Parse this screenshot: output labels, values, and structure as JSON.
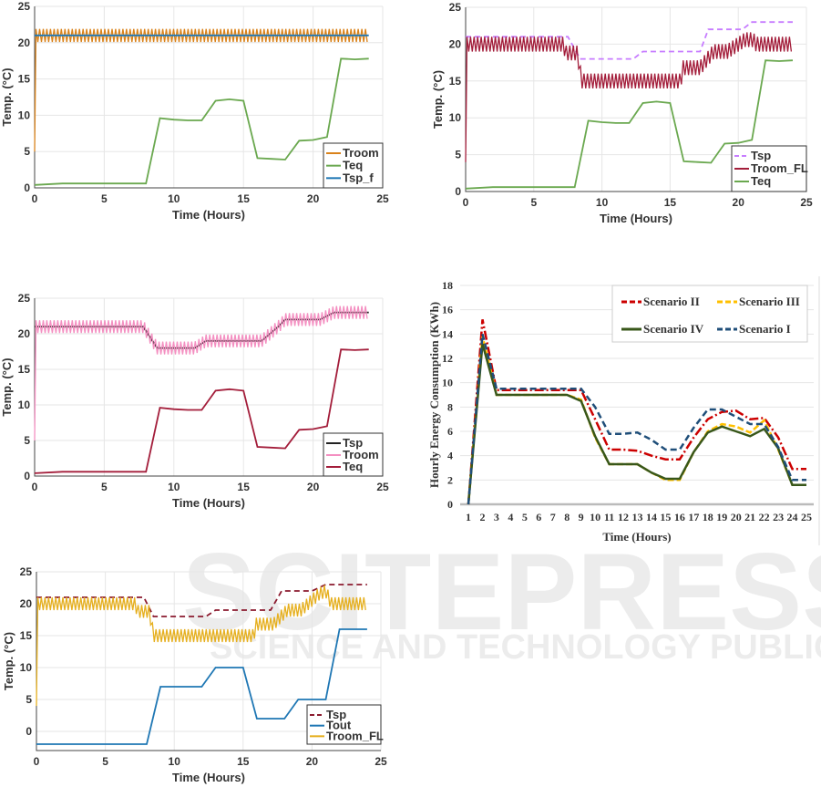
{
  "watermark": {
    "title": "SCITEPRESS",
    "subtitle": "SCIENCE AND TECHNOLOGY PUBLICATIONS"
  },
  "chart_data": [
    {
      "id": "c1",
      "type": "line",
      "title": "",
      "xlabel": "Time (Hours)",
      "ylabel": "Temp. (°C)",
      "xlim": [
        0,
        25
      ],
      "ylim": [
        0,
        25
      ],
      "xticks": [
        0,
        5,
        10,
        15,
        20,
        25
      ],
      "yticks": [
        0,
        5,
        10,
        15,
        20,
        25
      ],
      "grid": true,
      "legend": "bottom-right",
      "series": [
        {
          "name": "Troom",
          "color": "#d9821a",
          "dash": "",
          "points": [
            [
              0,
              5
            ],
            [
              0.1,
              21
            ],
            [
              24,
              21
            ]
          ],
          "ripple": [
            [
              0.1,
              24,
              0.9
            ]
          ]
        },
        {
          "name": "Teq",
          "color": "#6aa84f",
          "dash": "",
          "points": [
            [
              0,
              0.4
            ],
            [
              2,
              0.6
            ],
            [
              8,
              0.6
            ],
            [
              9,
              9.6
            ],
            [
              10,
              9.4
            ],
            [
              11,
              9.3
            ],
            [
              12,
              9.3
            ],
            [
              13,
              12
            ],
            [
              14,
              12.2
            ],
            [
              15,
              12
            ],
            [
              16,
              4.1
            ],
            [
              17,
              4.0
            ],
            [
              18,
              3.9
            ],
            [
              19,
              6.5
            ],
            [
              20,
              6.6
            ],
            [
              21,
              7
            ],
            [
              22,
              17.8
            ],
            [
              23,
              17.7
            ],
            [
              24,
              17.8
            ]
          ]
        },
        {
          "name": "Tsp_f",
          "color": "#1f77b4",
          "dash": "",
          "points": [
            [
              0,
              21
            ],
            [
              24,
              21
            ]
          ]
        }
      ]
    },
    {
      "id": "c2",
      "type": "line",
      "title": "",
      "xlabel": "Time (Hours)",
      "ylabel": "Temp. (°C)",
      "xlim": [
        0,
        25
      ],
      "ylim": [
        0,
        25
      ],
      "xticks": [
        0,
        5,
        10,
        15,
        20,
        25
      ],
      "yticks": [
        0,
        5,
        10,
        15,
        20,
        25
      ],
      "grid": true,
      "legend": "bottom-right",
      "series": [
        {
          "name": "Tsp",
          "color": "#c77dff",
          "dash": "6,4",
          "points": [
            [
              0,
              21
            ],
            [
              7.5,
              21
            ],
            [
              8.4,
              18
            ],
            [
              12.3,
              18
            ],
            [
              13,
              19
            ],
            [
              17.2,
              19
            ],
            [
              17.8,
              22
            ],
            [
              20.3,
              22
            ],
            [
              21,
              23
            ],
            [
              24,
              23
            ]
          ]
        },
        {
          "name": "Troom_FL",
          "color": "#a31d3a",
          "dash": "",
          "points": [
            [
              0,
              4
            ],
            [
              0.1,
              20
            ],
            [
              7.2,
              20
            ],
            [
              7.3,
              18.8
            ],
            [
              8.2,
              18.8
            ],
            [
              8.5,
              15
            ],
            [
              15.8,
              15
            ],
            [
              15.9,
              16.8
            ],
            [
              17.2,
              16.8
            ],
            [
              18.2,
              19
            ],
            [
              19.2,
              19
            ],
            [
              20.5,
              20.6
            ],
            [
              21.1,
              20.6
            ],
            [
              21.3,
              20
            ],
            [
              24,
              20
            ]
          ],
          "ripple": [
            [
              0.1,
              24,
              1
            ]
          ]
        },
        {
          "name": "Teq",
          "color": "#6aa84f",
          "dash": "",
          "points": [
            [
              0,
              0.4
            ],
            [
              2,
              0.6
            ],
            [
              8,
              0.6
            ],
            [
              9,
              9.6
            ],
            [
              10,
              9.4
            ],
            [
              11,
              9.3
            ],
            [
              12,
              9.3
            ],
            [
              13,
              12
            ],
            [
              14,
              12.2
            ],
            [
              15,
              12
            ],
            [
              16,
              4.1
            ],
            [
              17,
              4.0
            ],
            [
              18,
              3.9
            ],
            [
              19,
              6.5
            ],
            [
              20,
              6.6
            ],
            [
              21,
              7
            ],
            [
              22,
              17.8
            ],
            [
              23,
              17.7
            ],
            [
              24,
              17.8
            ]
          ]
        }
      ]
    },
    {
      "id": "c3",
      "type": "line",
      "title": "",
      "xlabel": "Time (Hours)",
      "ylabel": "Temp. (°C)",
      "xlim": [
        0,
        25
      ],
      "ylim": [
        0,
        25
      ],
      "xticks": [
        0,
        5,
        10,
        15,
        20,
        25
      ],
      "yticks": [
        0,
        5,
        10,
        15,
        20,
        25
      ],
      "grid": true,
      "legend": "bottom-right",
      "series": [
        {
          "name": "Tsp",
          "color": "#222222",
          "dash": "",
          "points": [
            [
              0,
              21
            ],
            [
              7.8,
              21
            ],
            [
              8.8,
              18
            ],
            [
              11.5,
              18
            ],
            [
              12.3,
              19
            ],
            [
              16.3,
              19
            ],
            [
              17.5,
              21
            ],
            [
              18,
              22
            ],
            [
              20.5,
              22
            ],
            [
              21.5,
              23
            ],
            [
              24,
              23
            ]
          ]
        },
        {
          "name": "Troom",
          "color": "#f48fc1",
          "dash": "",
          "points": [
            [
              0,
              5
            ],
            [
              0.1,
              21
            ],
            [
              7.8,
              21
            ],
            [
              8.8,
              18
            ],
            [
              11.5,
              18
            ],
            [
              12.3,
              19
            ],
            [
              16.3,
              19
            ],
            [
              17.5,
              21
            ],
            [
              18,
              22
            ],
            [
              20.5,
              22
            ],
            [
              21.5,
              23
            ],
            [
              24,
              23
            ]
          ],
          "ripple": [
            [
              0.1,
              24,
              0.9
            ]
          ]
        },
        {
          "name": "Teq",
          "color": "#a31d3a",
          "dash": "",
          "points": [
            [
              0,
              0.4
            ],
            [
              2,
              0.6
            ],
            [
              8,
              0.6
            ],
            [
              9,
              9.6
            ],
            [
              10,
              9.4
            ],
            [
              11,
              9.3
            ],
            [
              12,
              9.3
            ],
            [
              13,
              12
            ],
            [
              14,
              12.2
            ],
            [
              15,
              12
            ],
            [
              16,
              4.1
            ],
            [
              17,
              4.0
            ],
            [
              18,
              3.9
            ],
            [
              19,
              6.5
            ],
            [
              20,
              6.6
            ],
            [
              21,
              7
            ],
            [
              22,
              17.8
            ],
            [
              23,
              17.7
            ],
            [
              24,
              17.8
            ]
          ]
        }
      ]
    },
    {
      "id": "c4",
      "type": "line",
      "title": "",
      "xlabel": "Time (Hours)",
      "ylabel": "Hourly Energy Consumption (KWh)",
      "xlim": [
        1,
        25
      ],
      "ylim": [
        0,
        18
      ],
      "xticks": [
        1,
        2,
        3,
        4,
        5,
        6,
        7,
        8,
        9,
        10,
        11,
        12,
        13,
        14,
        15,
        16,
        17,
        18,
        19,
        20,
        21,
        22,
        23,
        24,
        25
      ],
      "yticks": [
        0,
        2,
        4,
        6,
        8,
        10,
        12,
        14,
        16,
        18
      ],
      "grid": true,
      "legend": "top-right",
      "categories": [
        1,
        2,
        3,
        4,
        5,
        6,
        7,
        8,
        9,
        10,
        11,
        12,
        13,
        14,
        15,
        16,
        17,
        18,
        19,
        20,
        21,
        22,
        23,
        24,
        25
      ],
      "series": [
        {
          "name": "Scenario II",
          "color": "#cc0000",
          "dash": "10,3,2,3",
          "values": [
            0,
            15.2,
            9.4,
            9.4,
            9.4,
            9.4,
            9.4,
            9.4,
            9.4,
            7.0,
            4.5,
            4.5,
            4.4,
            4.0,
            3.7,
            3.7,
            5.5,
            7.0,
            7.6,
            7.7,
            7.0,
            7.1,
            5.5,
            2.9,
            2.9
          ]
        },
        {
          "name": "Scenario III",
          "color": "#ffc000",
          "dash": "7,3",
          "values": [
            0,
            13.8,
            9.0,
            9.0,
            9.0,
            9.0,
            9.0,
            9.0,
            8.6,
            5.5,
            3.3,
            3.3,
            3.3,
            2.6,
            2.0,
            2.0,
            4.3,
            6.0,
            6.6,
            6.4,
            5.9,
            6.9,
            4.5,
            1.6,
            1.6
          ]
        },
        {
          "name": "Scenario IV",
          "color": "#38571a",
          "dash": "",
          "values": [
            0,
            13.2,
            9.0,
            9.0,
            9.0,
            9.0,
            9.0,
            9.0,
            8.5,
            5.6,
            3.3,
            3.3,
            3.3,
            2.6,
            2.1,
            2.1,
            4.3,
            5.9,
            6.4,
            6.0,
            5.6,
            6.2,
            4.6,
            1.6,
            1.6
          ]
        },
        {
          "name": "Scenario I",
          "color": "#1f4e79",
          "dash": "7,4",
          "values": [
            0,
            14.0,
            9.5,
            9.5,
            9.5,
            9.5,
            9.5,
            9.5,
            9.5,
            8.0,
            5.8,
            5.8,
            5.9,
            5.3,
            4.5,
            4.5,
            6.3,
            7.8,
            7.8,
            7.2,
            6.6,
            6.6,
            4.7,
            2.0,
            2.0
          ]
        }
      ]
    },
    {
      "id": "c5",
      "type": "line",
      "title": "",
      "xlabel": "Time (Hours)",
      "ylabel": "Temp. (°C)",
      "xlim": [
        0,
        25
      ],
      "ylim": [
        -3,
        25
      ],
      "xticks": [
        0,
        5,
        10,
        15,
        20,
        25
      ],
      "yticks": [
        0,
        5,
        10,
        15,
        20,
        25
      ],
      "grid": true,
      "legend": "bottom-right",
      "series": [
        {
          "name": "Tsp",
          "color": "#8b1a2e",
          "dash": "6,4",
          "points": [
            [
              0,
              21
            ],
            [
              7.8,
              21
            ],
            [
              8.5,
              18
            ],
            [
              12.3,
              18
            ],
            [
              13,
              19
            ],
            [
              17,
              19
            ],
            [
              17.8,
              22
            ],
            [
              20,
              22
            ],
            [
              21,
              23
            ],
            [
              24,
              23
            ]
          ]
        },
        {
          "name": "Tout",
          "color": "#1f77b4",
          "dash": "",
          "points": [
            [
              0,
              -2
            ],
            [
              8,
              -2
            ],
            [
              9,
              7
            ],
            [
              12,
              7
            ],
            [
              13,
              10
            ],
            [
              15,
              10
            ],
            [
              16,
              2
            ],
            [
              18,
              2
            ],
            [
              19,
              5
            ],
            [
              21,
              5
            ],
            [
              22,
              16
            ],
            [
              24,
              16
            ]
          ]
        },
        {
          "name": "Troom_FL",
          "color": "#e6b020",
          "dash": "",
          "points": [
            [
              0,
              4
            ],
            [
              0.1,
              20
            ],
            [
              7.2,
              20
            ],
            [
              7.3,
              18.8
            ],
            [
              8.2,
              18.8
            ],
            [
              8.5,
              15
            ],
            [
              15.8,
              15
            ],
            [
              15.9,
              16.8
            ],
            [
              17.2,
              16.8
            ],
            [
              18.2,
              19
            ],
            [
              19.2,
              19
            ],
            [
              20.5,
              21.5
            ],
            [
              21,
              22
            ],
            [
              21.4,
              20
            ],
            [
              24,
              20
            ]
          ],
          "ripple": [
            [
              0.1,
              24,
              1
            ]
          ]
        }
      ]
    }
  ]
}
